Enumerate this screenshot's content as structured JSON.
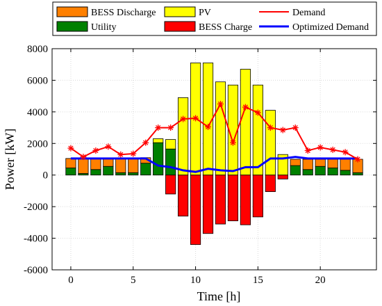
{
  "chart_data": {
    "type": "bar",
    "title": "",
    "xlabel": "Time [h]",
    "ylabel": "Power [kW]",
    "xlim": [
      -1.5,
      24.5
    ],
    "ylim": [
      -6000,
      8000
    ],
    "xticks": [
      0,
      5,
      10,
      15,
      20
    ],
    "yticks": [
      -6000,
      -4000,
      -2000,
      0,
      2000,
      4000,
      6000,
      8000
    ],
    "grid": true,
    "legend_position": "top",
    "hours": [
      0,
      1,
      2,
      3,
      4,
      5,
      6,
      7,
      8,
      9,
      10,
      11,
      12,
      13,
      14,
      15,
      16,
      17,
      18,
      19,
      20,
      21,
      22,
      23
    ],
    "series": [
      {
        "name": "Utility",
        "kind": "stacked-bar",
        "color": "#008000",
        "values": [
          450,
          100,
          350,
          550,
          150,
          150,
          750,
          2050,
          1650,
          0,
          0,
          0,
          0,
          0,
          0,
          0,
          0,
          0,
          600,
          350,
          550,
          450,
          300,
          150
        ]
      },
      {
        "name": "BESS Discharge",
        "kind": "stacked-bar",
        "color": "#ff8000",
        "values": [
          600,
          950,
          700,
          500,
          900,
          900,
          350,
          0,
          0,
          0,
          0,
          0,
          0,
          0,
          0,
          0,
          0,
          0,
          400,
          650,
          450,
          550,
          700,
          850
        ]
      },
      {
        "name": "PV",
        "kind": "stacked-bar",
        "color": "#ffff00",
        "values": [
          0,
          0,
          0,
          0,
          0,
          0,
          0,
          250,
          600,
          4900,
          7100,
          7100,
          5900,
          5700,
          6700,
          5700,
          4100,
          1300,
          0,
          0,
          0,
          0,
          0,
          0
        ]
      },
      {
        "name": "BESS Charge",
        "kind": "negative-bar",
        "color": "#ff0000",
        "values": [
          0,
          0,
          0,
          0,
          0,
          0,
          0,
          0,
          -1200,
          -2600,
          -4400,
          -3700,
          -3100,
          -2900,
          -3150,
          -2650,
          -1050,
          -250,
          0,
          0,
          0,
          0,
          0,
          0
        ]
      },
      {
        "name": "Demand",
        "kind": "line-marker",
        "color": "#ff0000",
        "values": [
          1700,
          1150,
          1550,
          1800,
          1300,
          1350,
          2050,
          3000,
          3000,
          3550,
          3600,
          3050,
          4500,
          2050,
          4300,
          3950,
          3000,
          2850,
          3000,
          1550,
          1750,
          1600,
          1450,
          1000
        ]
      },
      {
        "name": "Optimized Demand",
        "kind": "line",
        "color": "#0000ff",
        "values": [
          1050,
          1050,
          1050,
          1050,
          1050,
          1050,
          1050,
          600,
          500,
          300,
          200,
          400,
          300,
          250,
          500,
          500,
          1050,
          1050,
          1150,
          1050,
          1050,
          1050,
          1050,
          1050
        ]
      }
    ]
  }
}
